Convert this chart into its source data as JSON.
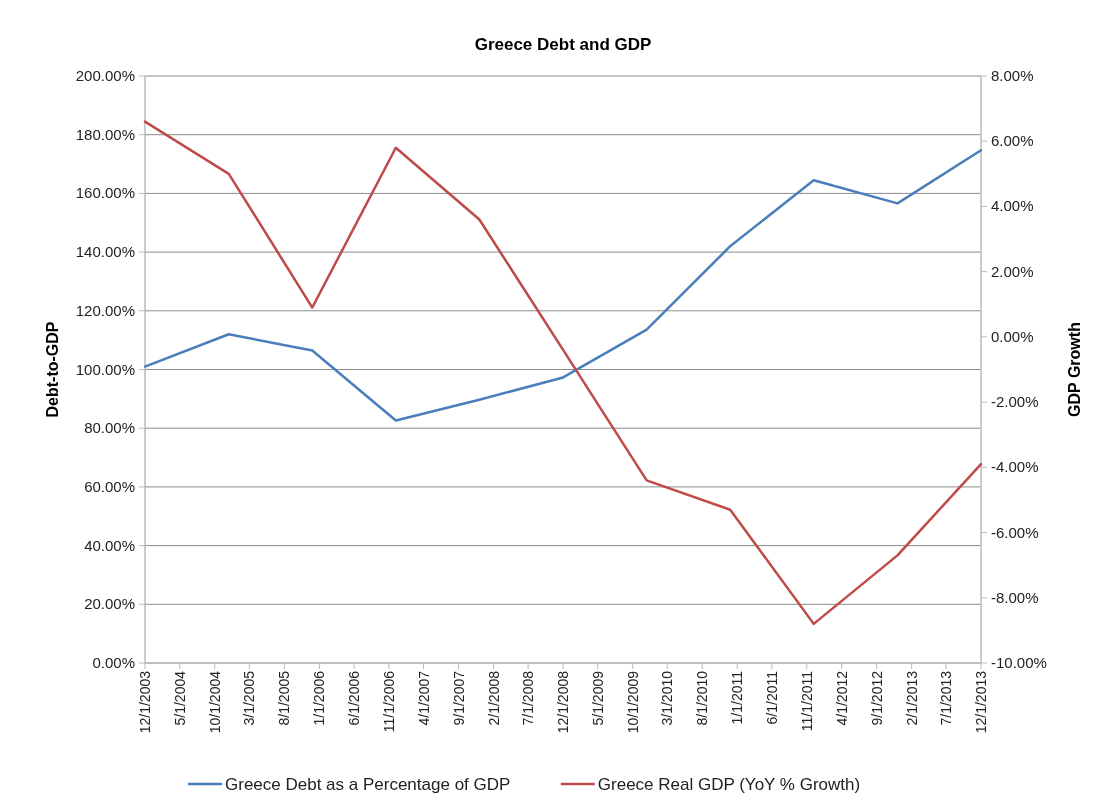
{
  "chart_data": {
    "type": "line",
    "title": "Greece Debt and GDP",
    "ylabel": "Debt-to-GDP",
    "y2label": "GDP Growth",
    "x": [
      "2003-12-01",
      "2004-12-01",
      "2005-12-01",
      "2006-12-01",
      "2007-12-01",
      "2008-12-01",
      "2009-12-01",
      "2010-12-01",
      "2011-12-01",
      "2012-12-01",
      "2013-12-01"
    ],
    "series": [
      {
        "name": "Greece Debt as a Percentage of GDP",
        "color": "#4a7ebb",
        "values": [
          101,
          112,
          106.5,
          82.6,
          89.7,
          97.3,
          113.6,
          142,
          164.5,
          156.6,
          174.7
        ]
      },
      {
        "name": "Greece Real GDP (YoY % Growth)",
        "color": "#be4b48",
        "axis": "y2",
        "values": [
          6.6,
          5.0,
          0.9,
          5.8,
          3.6,
          -0.4,
          -4.4,
          -5.3,
          -8.8,
          -6.7,
          -3.9
        ]
      }
    ],
    "xlim": [
      "2003-12-01",
      "2013-12-01"
    ],
    "xticks": [
      {
        "value": "2003-12-01",
        "label": "12/1/2003"
      },
      {
        "value": "2004-05-01",
        "label": "5/1/2004"
      },
      {
        "value": "2004-10-01",
        "label": "10/1/2004"
      },
      {
        "value": "2005-03-01",
        "label": "3/1/2005"
      },
      {
        "value": "2005-08-01",
        "label": "8/1/2005"
      },
      {
        "value": "2006-01-01",
        "label": "1/1/2006"
      },
      {
        "value": "2006-06-01",
        "label": "6/1/2006"
      },
      {
        "value": "2006-11-01",
        "label": "11/1/2006"
      },
      {
        "value": "2007-04-01",
        "label": "4/1/2007"
      },
      {
        "value": "2007-09-01",
        "label": "9/1/2007"
      },
      {
        "value": "2008-02-01",
        "label": "2/1/2008"
      },
      {
        "value": "2008-07-01",
        "label": "7/1/2008"
      },
      {
        "value": "2008-12-01",
        "label": "12/1/2008"
      },
      {
        "value": "2009-05-01",
        "label": "5/1/2009"
      },
      {
        "value": "2009-10-01",
        "label": "10/1/2009"
      },
      {
        "value": "2010-03-01",
        "label": "3/1/2010"
      },
      {
        "value": "2010-08-01",
        "label": "8/1/2010"
      },
      {
        "value": "2011-01-01",
        "label": "1/1/2011"
      },
      {
        "value": "2011-06-01",
        "label": "6/1/2011"
      },
      {
        "value": "2011-11-01",
        "label": "11/1/2011"
      },
      {
        "value": "2012-04-01",
        "label": "4/1/2012"
      },
      {
        "value": "2012-09-01",
        "label": "9/1/2012"
      },
      {
        "value": "2013-02-01",
        "label": "2/1/2013"
      },
      {
        "value": "2013-07-01",
        "label": "7/1/2013"
      },
      {
        "value": "2013-12-01",
        "label": "12/1/2013"
      }
    ],
    "ylim": [
      0,
      200
    ],
    "yticks": [
      {
        "value": 0,
        "label": "0.00%"
      },
      {
        "value": 20,
        "label": "20.00%"
      },
      {
        "value": 40,
        "label": "40.00%"
      },
      {
        "value": 60,
        "label": "60.00%"
      },
      {
        "value": 80,
        "label": "80.00%"
      },
      {
        "value": 100,
        "label": "100.00%"
      },
      {
        "value": 120,
        "label": "120.00%"
      },
      {
        "value": 140,
        "label": "140.00%"
      },
      {
        "value": 160,
        "label": "160.00%"
      },
      {
        "value": 180,
        "label": "180.00%"
      },
      {
        "value": 200,
        "label": "200.00%"
      }
    ],
    "y2lim": [
      -10,
      8
    ],
    "y2ticks": [
      {
        "value": -10,
        "label": "-10.00%"
      },
      {
        "value": -8,
        "label": "-8.00%"
      },
      {
        "value": -6,
        "label": "-6.00%"
      },
      {
        "value": -4,
        "label": "-4.00%"
      },
      {
        "value": -2,
        "label": "-2.00%"
      },
      {
        "value": 0,
        "label": "0.00%"
      },
      {
        "value": 2,
        "label": "2.00%"
      },
      {
        "value": 4,
        "label": "4.00%"
      },
      {
        "value": 6,
        "label": "6.00%"
      },
      {
        "value": 8,
        "label": "8.00%"
      }
    ],
    "grid": "y",
    "legend": "bottom",
    "marker": "none",
    "line_style": "solid"
  }
}
